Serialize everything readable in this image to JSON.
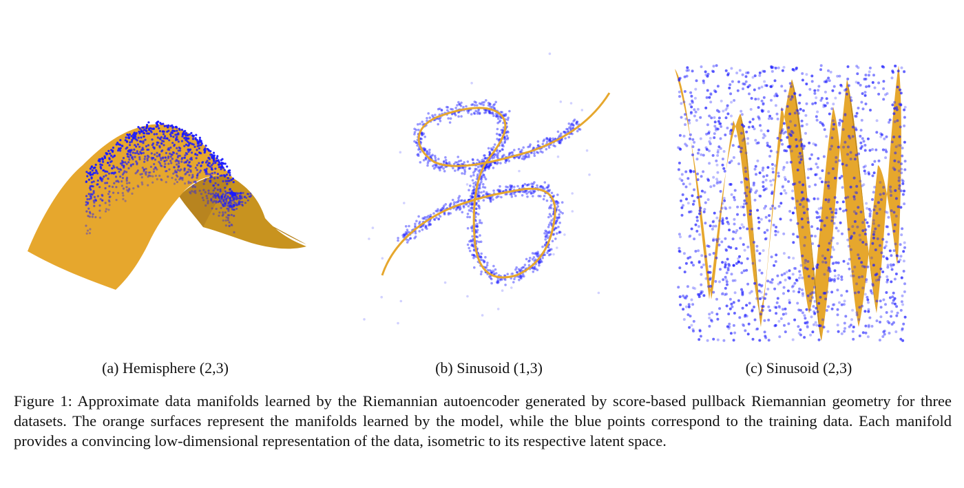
{
  "colors": {
    "surface": "#e6a72d",
    "surface_dark": "#b8841f",
    "points": "#1a1aff"
  },
  "panels": [
    {
      "label": "(a) Hemisphere (2,3)"
    },
    {
      "label": "(b) Sinusoid (1,3)"
    },
    {
      "label": "(c) Sinusoid (2,3)"
    }
  ],
  "caption": {
    "prefix": "Figure 1:",
    "text": "Approximate data manifolds learned by the Riemannian autoencoder generated by score-based pullback Riemannian geometry for three datasets. The orange surfaces represent the manifolds learned by the model, while the blue points correspond to the training data. Each manifold provides a convincing low-dimensional representation of the data, isometric to its respective latent space."
  }
}
